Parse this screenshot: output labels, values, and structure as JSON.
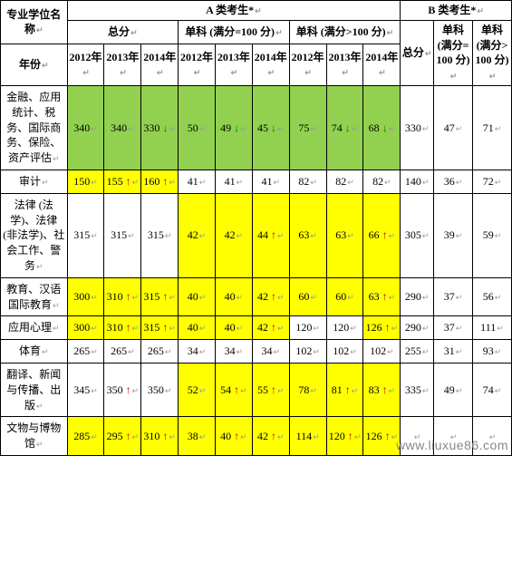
{
  "header": {
    "col_major": "专业学位名称",
    "groupA": "A 类考生*",
    "groupB": "B 类考生*",
    "sub_total": "总分",
    "sub_100": "单科 (满分=100 分)",
    "sub_gt100": "单科 (满分>100 分)",
    "b_total": "总分",
    "b_100": "单科 (满分=100 分)",
    "b_gt100": "单科 (满分>100 分)",
    "year_label": "年份",
    "years": [
      "2012年",
      "2013年",
      "2014年",
      "2012年",
      "2013年",
      "2014年",
      "2012年",
      "2013年",
      "2014年"
    ]
  },
  "arrows": {
    "up": "↑",
    "down": "↓"
  },
  "rows": [
    {
      "label": "金融、应用统计、税务、国际商务、保险、资产评估",
      "cells": [
        {
          "v": "340",
          "bg": "green"
        },
        {
          "v": "340",
          "bg": "green"
        },
        {
          "v": "330",
          "bg": "green",
          "arrow": "down"
        },
        {
          "v": "50",
          "bg": "green"
        },
        {
          "v": "49",
          "bg": "green",
          "arrow": "down"
        },
        {
          "v": "45",
          "bg": "green",
          "arrow": "down"
        },
        {
          "v": "75",
          "bg": "green"
        },
        {
          "v": "74",
          "bg": "green",
          "arrow": "down"
        },
        {
          "v": "68",
          "bg": "green",
          "arrow": "down"
        }
      ],
      "b": {
        "total": "330",
        "s100": "47",
        "sgt": "71"
      }
    },
    {
      "label": "审计",
      "cells": [
        {
          "v": "150",
          "bg": "yellow"
        },
        {
          "v": "155",
          "bg": "yellow",
          "arrow": "up"
        },
        {
          "v": "160",
          "bg": "yellow",
          "arrow": "up"
        },
        {
          "v": "41"
        },
        {
          "v": "41"
        },
        {
          "v": "41"
        },
        {
          "v": "82"
        },
        {
          "v": "82"
        },
        {
          "v": "82"
        }
      ],
      "b": {
        "total": "140",
        "s100": "36",
        "sgt": "72"
      }
    },
    {
      "label": "法律 (法学)、法律 (非法学)、社会工作、警务",
      "cells": [
        {
          "v": "315"
        },
        {
          "v": "315"
        },
        {
          "v": "315"
        },
        {
          "v": "42",
          "bg": "yellow"
        },
        {
          "v": "42",
          "bg": "yellow"
        },
        {
          "v": "44",
          "bg": "yellow",
          "arrow": "up"
        },
        {
          "v": "63",
          "bg": "yellow"
        },
        {
          "v": "63",
          "bg": "yellow"
        },
        {
          "v": "66",
          "bg": "yellow",
          "arrow": "up"
        }
      ],
      "b": {
        "total": "305",
        "s100": "39",
        "sgt": "59"
      }
    },
    {
      "label": "教育、汉语国际教育",
      "cells": [
        {
          "v": "300",
          "bg": "yellow"
        },
        {
          "v": "310",
          "bg": "yellow",
          "arrow": "up"
        },
        {
          "v": "315",
          "bg": "yellow",
          "arrow": "up"
        },
        {
          "v": "40",
          "bg": "yellow"
        },
        {
          "v": "40",
          "bg": "yellow"
        },
        {
          "v": "42",
          "bg": "yellow",
          "arrow": "up"
        },
        {
          "v": "60",
          "bg": "yellow"
        },
        {
          "v": "60",
          "bg": "yellow"
        },
        {
          "v": "63",
          "bg": "yellow",
          "arrow": "up"
        }
      ],
      "b": {
        "total": "290",
        "s100": "37",
        "sgt": "56"
      }
    },
    {
      "label": "应用心理",
      "cells": [
        {
          "v": "300",
          "bg": "yellow"
        },
        {
          "v": "310",
          "bg": "yellow",
          "arrow": "up"
        },
        {
          "v": "315",
          "bg": "yellow",
          "arrow": "up"
        },
        {
          "v": "40",
          "bg": "yellow"
        },
        {
          "v": "40",
          "bg": "yellow"
        },
        {
          "v": "42",
          "bg": "yellow",
          "arrow": "up"
        },
        {
          "v": "120"
        },
        {
          "v": "120"
        },
        {
          "v": "126",
          "bg": "yellow",
          "arrow": "up"
        }
      ],
      "b": {
        "total": "290",
        "s100": "37",
        "sgt": "111"
      }
    },
    {
      "label": "体育",
      "cells": [
        {
          "v": "265"
        },
        {
          "v": "265"
        },
        {
          "v": "265"
        },
        {
          "v": "34"
        },
        {
          "v": "34"
        },
        {
          "v": "34"
        },
        {
          "v": "102"
        },
        {
          "v": "102"
        },
        {
          "v": "102"
        }
      ],
      "b": {
        "total": "255",
        "s100": "31",
        "sgt": "93"
      }
    },
    {
      "label": "翻译、新闻与传播、出版",
      "cells": [
        {
          "v": "345"
        },
        {
          "v": "350",
          "arrow": "up"
        },
        {
          "v": "350"
        },
        {
          "v": "52",
          "bg": "yellow"
        },
        {
          "v": "54",
          "bg": "yellow",
          "arrow": "up"
        },
        {
          "v": "55",
          "bg": "yellow",
          "arrow": "up"
        },
        {
          "v": "78",
          "bg": "yellow"
        },
        {
          "v": "81",
          "bg": "yellow",
          "arrow": "up"
        },
        {
          "v": "83",
          "bg": "yellow",
          "arrow": "up"
        }
      ],
      "b": {
        "total": "335",
        "s100": "49",
        "sgt": "74"
      }
    },
    {
      "label": "文物与博物馆",
      "cells": [
        {
          "v": "285",
          "bg": "yellow"
        },
        {
          "v": "295",
          "bg": "yellow",
          "arrow": "up"
        },
        {
          "v": "310",
          "bg": "yellow",
          "arrow": "up"
        },
        {
          "v": "38",
          "bg": "yellow"
        },
        {
          "v": "40",
          "bg": "yellow",
          "arrow": "up"
        },
        {
          "v": "42",
          "bg": "yellow",
          "arrow": "up"
        },
        {
          "v": "114",
          "bg": "yellow"
        },
        {
          "v": "120",
          "bg": "yellow",
          "arrow": "up"
        },
        {
          "v": "126",
          "bg": "yellow",
          "arrow": "up"
        }
      ],
      "b": {
        "total": "",
        "s100": "",
        "sgt": ""
      }
    }
  ],
  "watermark": "www.liuxue86.com"
}
